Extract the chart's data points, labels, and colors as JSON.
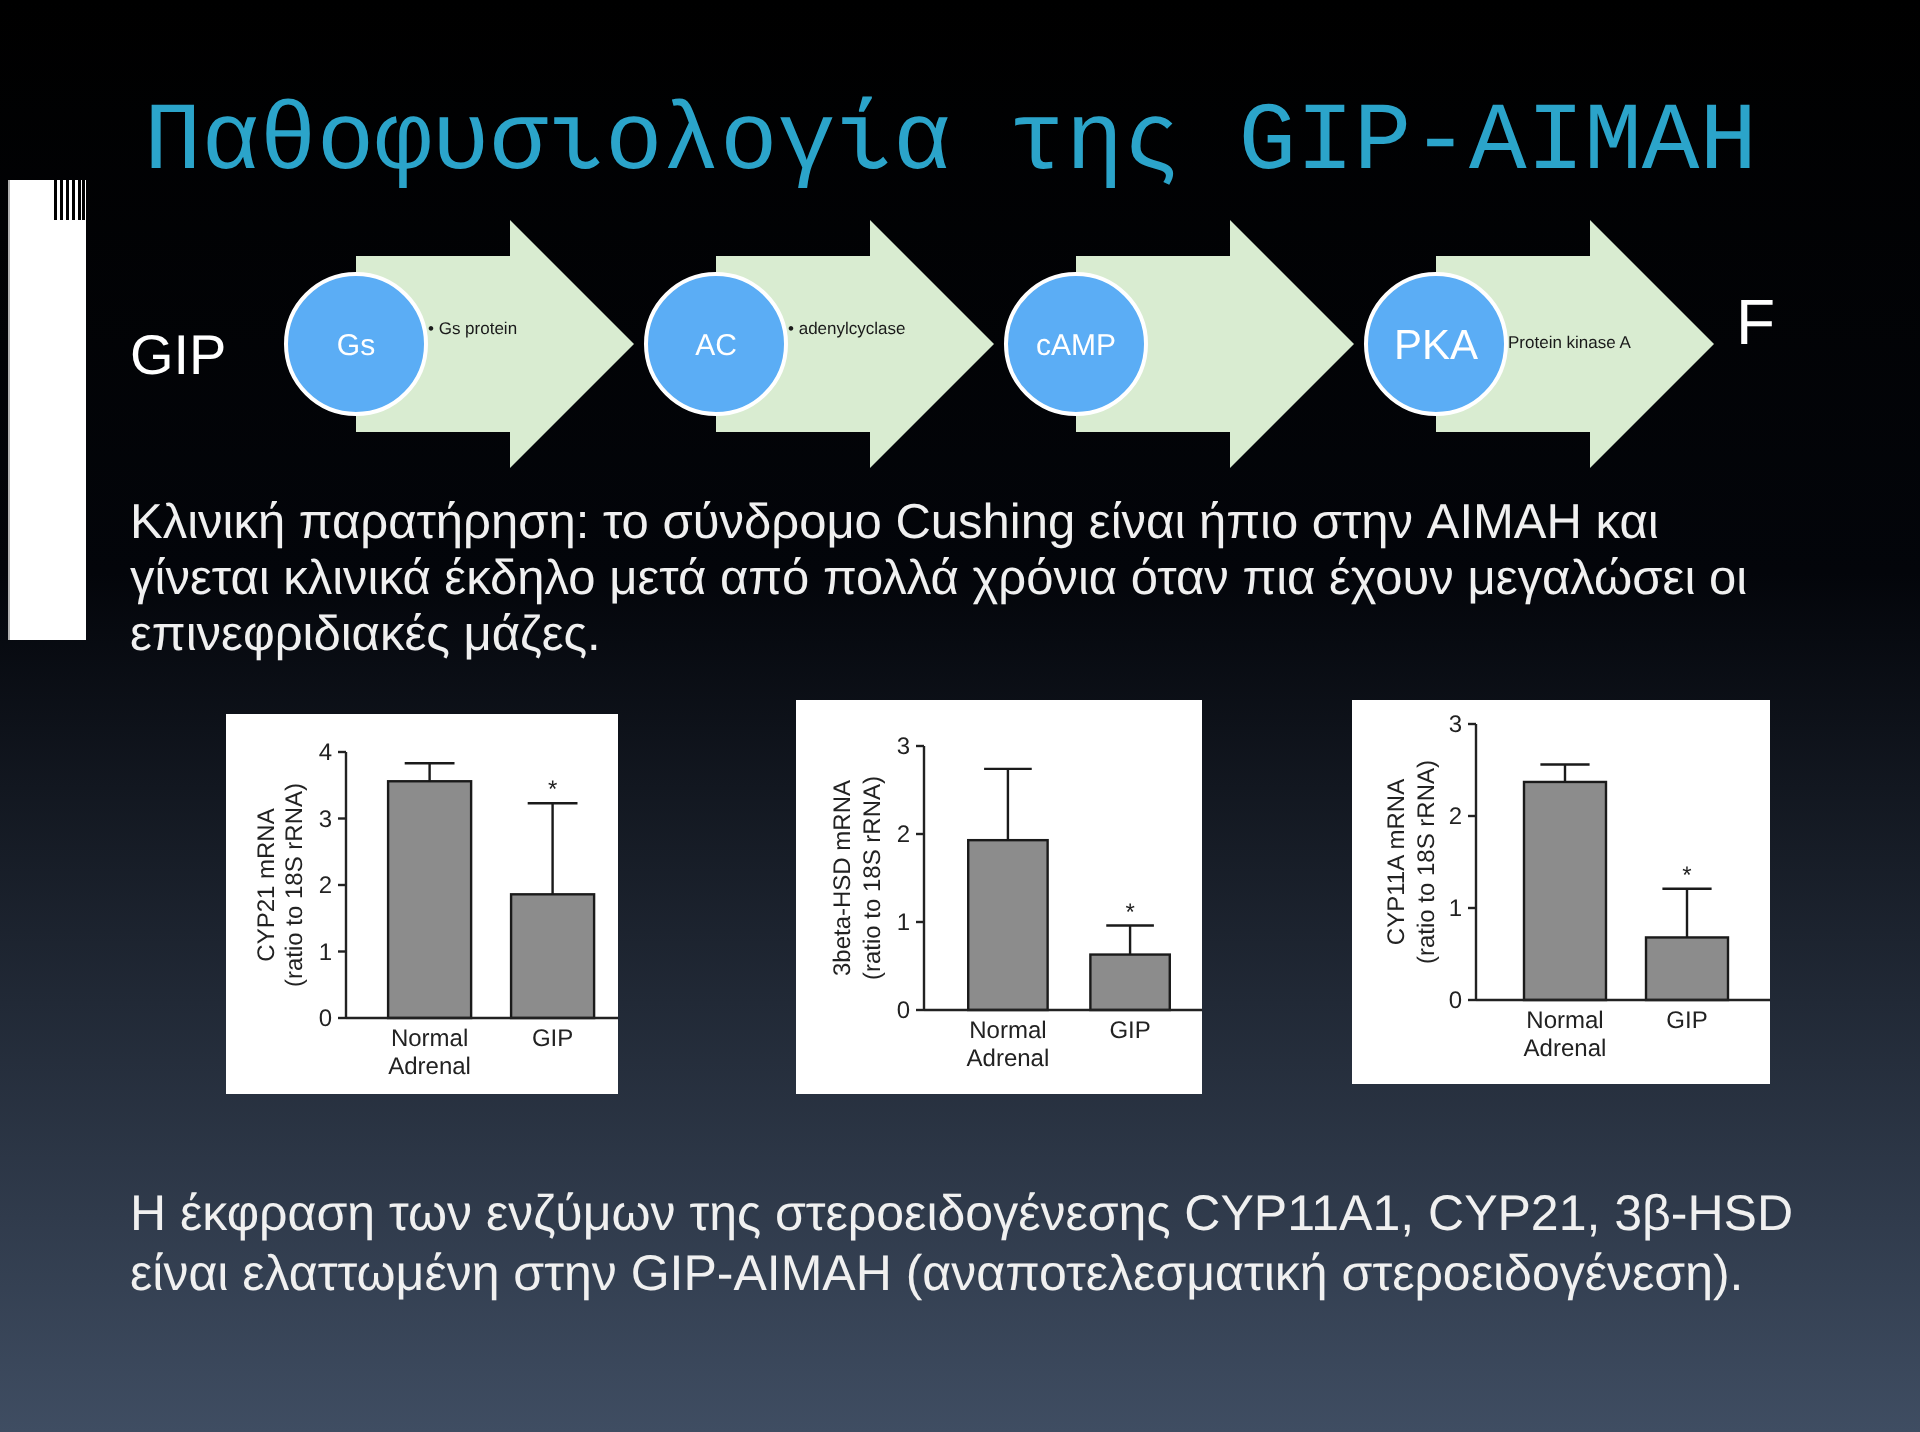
{
  "chart_data": [
    {
      "type": "other",
      "title": "Παθοφυσιολογία της GIP-AIMAH",
      "annotations": [
        "GIP",
        "Gs",
        "• Gs protein",
        "AC",
        "• adenylcyclase",
        "cAMP",
        "PKA",
        "Protein kinase A",
        "F",
        "Κλινική παρατήρηση: το σύνδρομο Cushing είναι ήπιο στην AIMAH και\nγίνεται κλινικά έκδηλο μετά από πολλά χρόνια όταν πια έχουν μεγαλώσει οι\nεπινεφριδιακές μάζες."
      ]
    },
    {
      "type": "bar",
      "ylabel": "CYP21 mRNA\n(ratio to 18S rRNA)",
      "categories": [
        "Normal\nAdrenal",
        "GIP"
      ],
      "values": [
        3.56,
        1.86
      ],
      "color": "#8c8c8c",
      "errors": [
        [
          3.56,
          3.83
        ],
        [
          1.86,
          3.23
        ]
      ],
      "ylim": [
        0,
        4
      ],
      "yticks": [
        0,
        1,
        2,
        3,
        4
      ],
      "annotations": [
        {
          "text": "*",
          "x": "GIP",
          "y": 3.23
        }
      ]
    },
    {
      "type": "bar",
      "ylabel": "3beta-HSD mRNA\n(ratio to 18S rRNA)",
      "categories": [
        "Normal\nAdrenal",
        "GIP"
      ],
      "values": [
        1.93,
        0.63
      ],
      "color": "#8c8c8c",
      "errors": [
        [
          1.93,
          2.74
        ],
        [
          0.63,
          0.96
        ]
      ],
      "ylim": [
        0,
        3
      ],
      "yticks": [
        0,
        1,
        2,
        3
      ],
      "annotations": [
        {
          "text": "*",
          "x": "GIP",
          "y": 0.96
        }
      ]
    },
    {
      "type": "bar",
      "ylabel": "CYP11A mRNA\n(ratio to 18S rRNA)",
      "categories": [
        "Normal\nAdrenal",
        "GIP"
      ],
      "values": [
        2.37,
        0.68
      ],
      "color": "#8c8c8c",
      "errors": [
        [
          2.37,
          2.56
        ],
        [
          0.68,
          1.21
        ]
      ],
      "ylim": [
        0,
        3
      ],
      "yticks": [
        0,
        1,
        2,
        3
      ],
      "annotations": [
        {
          "text": "*",
          "x": "GIP",
          "y": 1.21
        }
      ]
    },
    {
      "type": "other",
      "annotations": [
        "Η έκφραση των ενζύμων της στεροειδογένεσης CYP11A1, CYP21, 3β-HSD\nείναι ελαττωμένη στην GIP-AIMAH (αναποτελεσματική στεροειδογένεση)."
      ]
    }
  ]
}
